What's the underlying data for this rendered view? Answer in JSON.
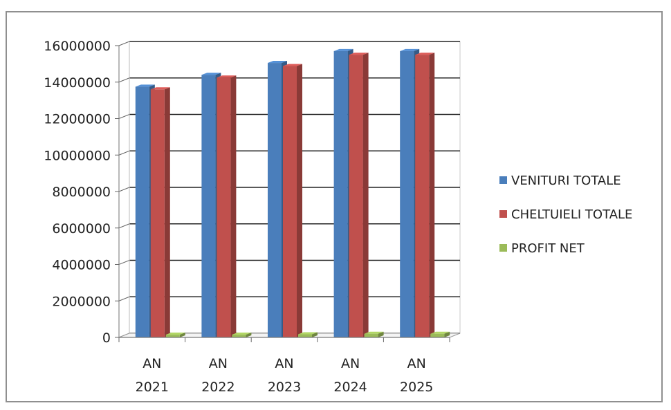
{
  "chart_data": {
    "type": "bar",
    "categories": [
      [
        "AN",
        "2021"
      ],
      [
        "AN",
        "2022"
      ],
      [
        "AN",
        "2023"
      ],
      [
        "AN",
        "2024"
      ],
      [
        "AN",
        "2025"
      ]
    ],
    "series": [
      {
        "name": "VENITURI TOTALE",
        "color": "#4a7ebb",
        "values": [
          13750000,
          14400000,
          15050000,
          15700000,
          15700000
        ]
      },
      {
        "name": "CHELTUIELI TOTALE",
        "color": "#c0504d",
        "values": [
          13600000,
          14250000,
          14880000,
          15500000,
          15500000
        ]
      },
      {
        "name": "PROFIT NET",
        "color": "#9bbb59",
        "values": [
          150000,
          150000,
          170000,
          200000,
          200000
        ]
      }
    ],
    "ylim": [
      0,
      16000000
    ],
    "yticks": [
      0,
      2000000,
      4000000,
      6000000,
      8000000,
      10000000,
      12000000,
      14000000,
      16000000
    ],
    "ytick_labels": [
      "0",
      "2000000",
      "4000000",
      "6000000",
      "8000000",
      "10000000",
      "12000000",
      "14000000",
      "16000000"
    ],
    "grid": true,
    "legend_position": "right",
    "title": "",
    "xlabel": "",
    "ylabel": ""
  }
}
